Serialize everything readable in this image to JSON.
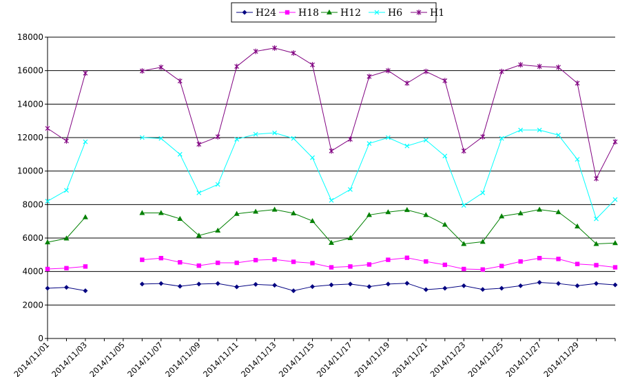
{
  "chart_data": {
    "type": "line",
    "x": [
      "2014/11/01",
      "2014/11/02",
      "2014/11/03",
      "2014/11/04",
      "2014/11/05",
      "2014/11/06",
      "2014/11/07",
      "2014/11/08",
      "2014/11/09",
      "2014/11/10",
      "2014/11/11",
      "2014/11/12",
      "2014/11/13",
      "2014/11/14",
      "2014/11/15",
      "2014/11/16",
      "2014/11/17",
      "2014/11/18",
      "2014/11/19",
      "2014/11/20",
      "2014/11/21",
      "2014/11/22",
      "2014/11/23",
      "2014/11/24",
      "2014/11/25",
      "2014/11/26",
      "2014/11/27",
      "2014/11/28",
      "2014/11/29",
      "2014/11/30",
      "2014/12/01"
    ],
    "x_tick_labels": [
      "2014/11/01",
      "2014/11/03",
      "2014/11/05",
      "2014/11/07",
      "2014/11/09",
      "2014/11/11",
      "2014/11/13",
      "2014/11/15",
      "2014/11/17",
      "2014/11/19",
      "2014/11/21",
      "2014/11/23",
      "2014/11/25",
      "2014/11/27",
      "2014/11/29"
    ],
    "ylim": [
      0,
      18000
    ],
    "y_ticks": [
      0,
      2000,
      4000,
      6000,
      8000,
      10000,
      12000,
      14000,
      16000,
      18000
    ],
    "grid": "horizontal",
    "legend_position": "top-center",
    "series": [
      {
        "name": "H24",
        "color": "#000080",
        "marker": "diamond",
        "values": [
          3000,
          3050,
          2850,
          null,
          null,
          3250,
          3280,
          3120,
          3250,
          3280,
          3080,
          3230,
          3180,
          2850,
          3100,
          3200,
          3250,
          3100,
          3250,
          3300,
          2920,
          3000,
          3150,
          2930,
          3000,
          3150,
          3350,
          3280,
          3150,
          3280,
          3200
        ]
      },
      {
        "name": "H18",
        "color": "#ff00ff",
        "marker": "square",
        "values": [
          4150,
          4200,
          4300,
          null,
          null,
          4700,
          4800,
          4550,
          4350,
          4520,
          4520,
          4680,
          4720,
          4580,
          4500,
          4250,
          4300,
          4420,
          4700,
          4820,
          4600,
          4400,
          4150,
          4120,
          4330,
          4600,
          4800,
          4750,
          4450,
          4380,
          4250
        ]
      },
      {
        "name": "H12",
        "color": "#008000",
        "marker": "triangle",
        "values": [
          5750,
          5980,
          7250,
          null,
          null,
          7500,
          7500,
          7150,
          6150,
          6450,
          7450,
          7580,
          7700,
          7480,
          7020,
          5720,
          6000,
          7380,
          7550,
          7680,
          7380,
          6800,
          5650,
          5780,
          7300,
          7480,
          7700,
          7550,
          6700,
          5650,
          5700
        ]
      },
      {
        "name": "H6",
        "color": "#00ffff",
        "marker": "x",
        "values": [
          8200,
          8850,
          11750,
          null,
          null,
          12000,
          11950,
          11000,
          8700,
          9200,
          11900,
          12200,
          12280,
          11950,
          10800,
          8250,
          8900,
          11650,
          12000,
          11500,
          11850,
          10900,
          7950,
          8700,
          11950,
          12450,
          12450,
          12150,
          10700,
          7150,
          8300
        ]
      },
      {
        "name": "H1",
        "color": "#800080",
        "marker": "star",
        "values": [
          12550,
          11800,
          15850,
          null,
          null,
          15980,
          16200,
          15380,
          11600,
          12050,
          16250,
          17150,
          17350,
          17050,
          16350,
          11200,
          11900,
          15650,
          16000,
          15250,
          15950,
          15400,
          11200,
          12050,
          15950,
          16350,
          16250,
          16200,
          15250,
          9550,
          11750
        ]
      }
    ]
  }
}
